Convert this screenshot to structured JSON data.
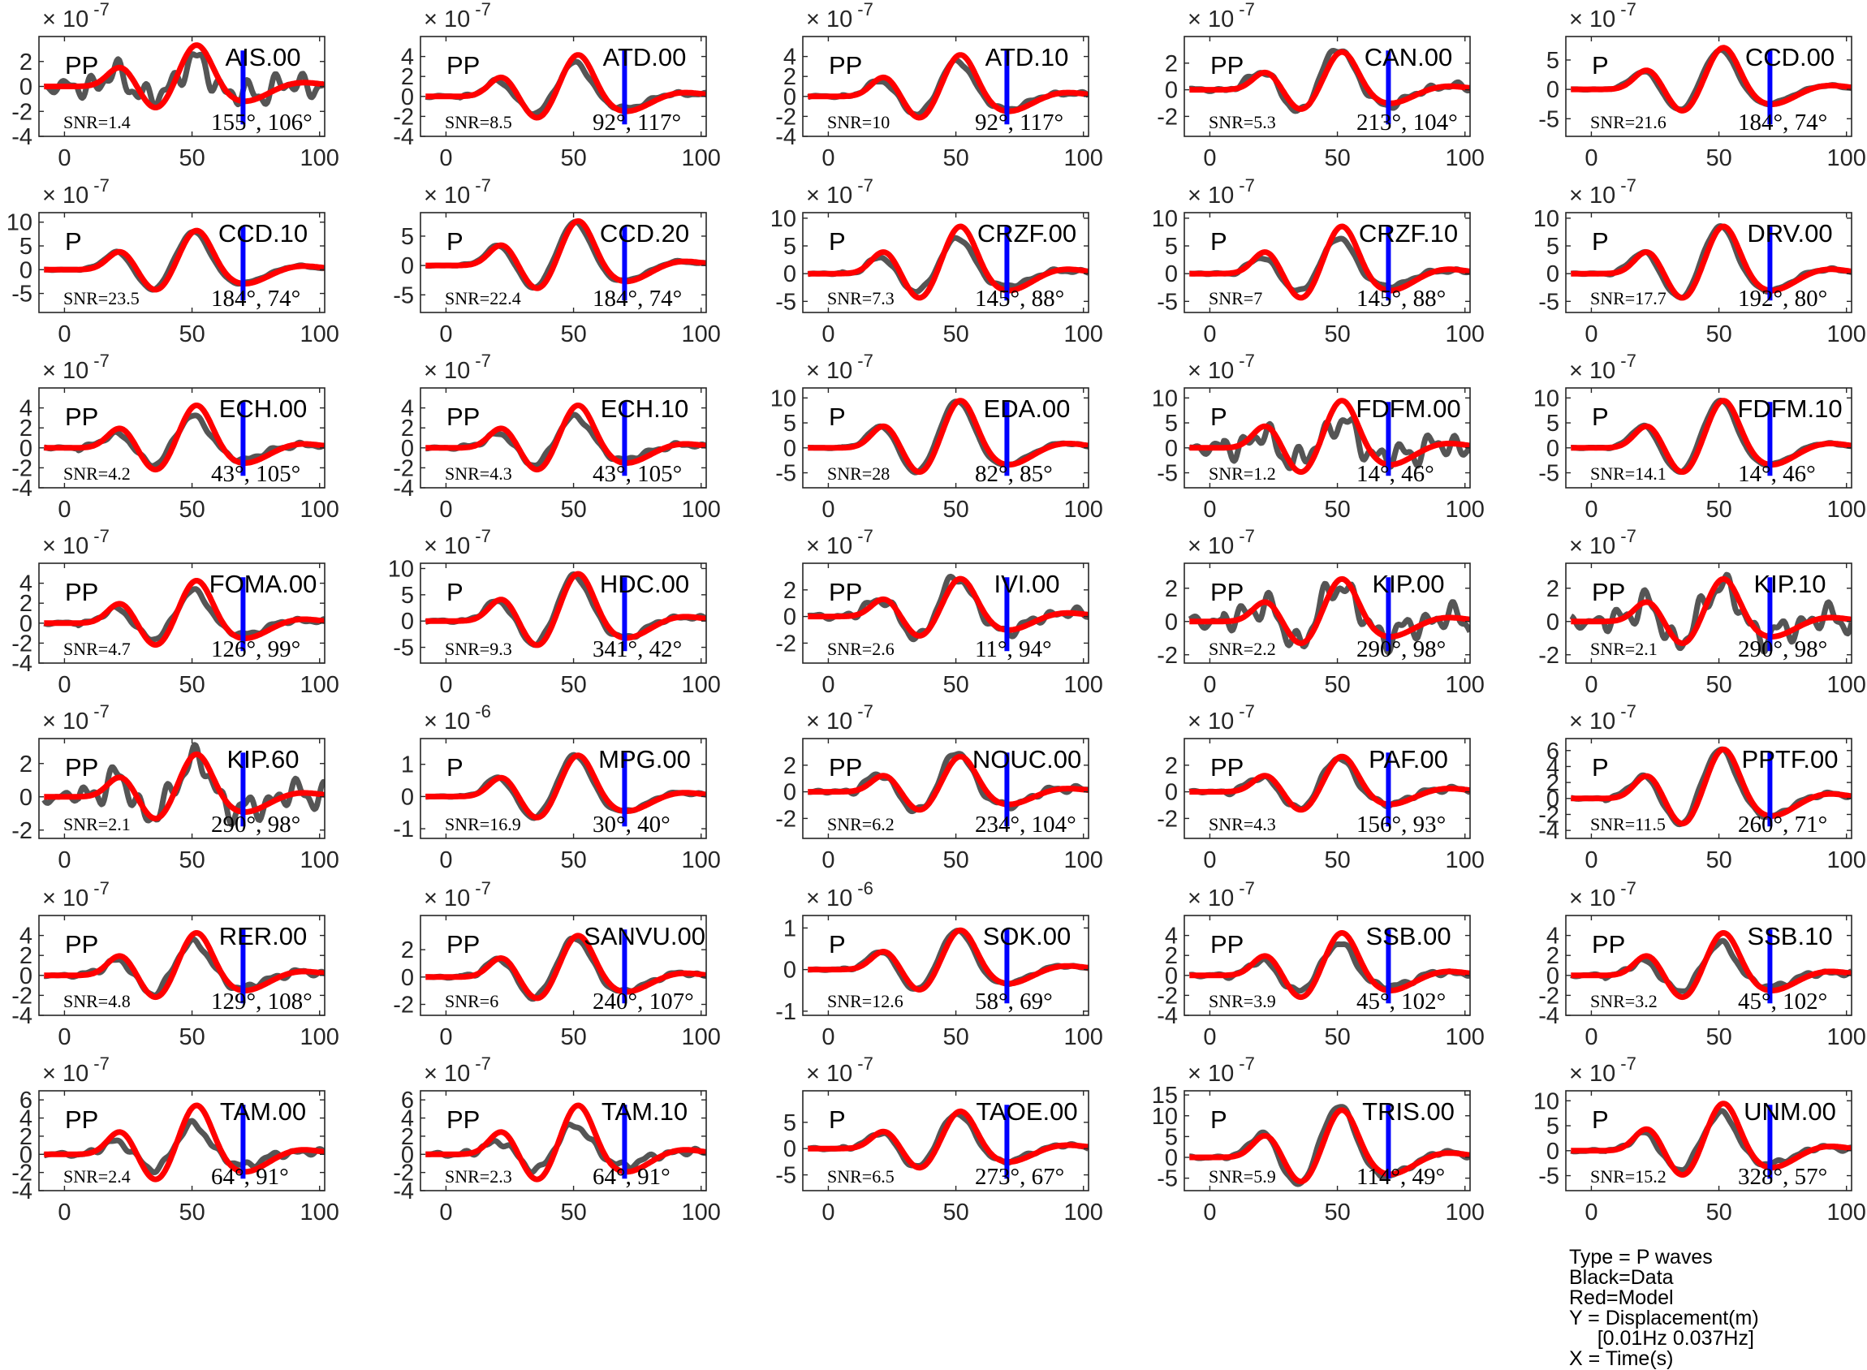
{
  "chart_data": {
    "type": "line",
    "layout": {
      "rows": 7,
      "cols": 5
    },
    "series_colors": {
      "data": "#555555",
      "model": "#ff0000",
      "marker": "#0000ff"
    },
    "x_ticks": [
      "0",
      "50",
      "100"
    ],
    "xlim": [
      -10,
      102
    ],
    "x_marker": 70,
    "panels": [
      {
        "station": "AIS.00",
        "phase": "PP",
        "snr": "SNR=1.4",
        "angles": "155°, 106°",
        "exp": "-7",
        "ylim": [
          -4,
          4
        ],
        "yticks": [
          "-4",
          "-2",
          "0",
          "2"
        ],
        "peak": 3.5,
        "data_amp": 0.6,
        "noise": 0.35
      },
      {
        "station": "ATD.00",
        "phase": "PP",
        "snr": "SNR=8.5",
        "angles": "92°, 117°",
        "exp": "-7",
        "ylim": [
          -4,
          6
        ],
        "yticks": [
          "-4",
          "-2",
          "0",
          "2",
          "4"
        ],
        "peak": 4.4,
        "data_amp": 0.8,
        "noise": 0.05
      },
      {
        "station": "ATD.10",
        "phase": "PP",
        "snr": "SNR=10",
        "angles": "92°, 117°",
        "exp": "-7",
        "ylim": [
          -4,
          6
        ],
        "yticks": [
          "-4",
          "-2",
          "0",
          "2",
          "4"
        ],
        "peak": 4.4,
        "data_amp": 0.85,
        "noise": 0.05
      },
      {
        "station": "CAN.00",
        "phase": "PP",
        "snr": "SNR=5.3",
        "angles": "213°, 104°",
        "exp": "-7",
        "ylim": [
          -3.5,
          4
        ],
        "yticks": [
          "-2",
          "0",
          "2"
        ],
        "peak": 3.0,
        "data_amp": 1.1,
        "noise": 0.1
      },
      {
        "station": "CCD.00",
        "phase": "P",
        "snr": "SNR=21.6",
        "angles": "184°, 74°",
        "exp": "-7",
        "ylim": [
          -8,
          9
        ],
        "yticks": [
          "-5",
          "0",
          "5"
        ],
        "peak": 7.5,
        "data_amp": 0.95,
        "noise": 0.02
      },
      {
        "station": "CCD.10",
        "phase": "P",
        "snr": "SNR=23.5",
        "angles": "184°, 74°",
        "exp": "-7",
        "ylim": [
          -9,
          12
        ],
        "yticks": [
          "-5",
          "0",
          "5",
          "10"
        ],
        "peak": 8.7,
        "data_amp": 0.97,
        "noise": 0.02
      },
      {
        "station": "CCD.20",
        "phase": "P",
        "snr": "SNR=22.4",
        "angles": "184°, 74°",
        "exp": "-7",
        "ylim": [
          -8,
          9
        ],
        "yticks": [
          "-5",
          "0",
          "5"
        ],
        "peak": 8.0,
        "data_amp": 0.97,
        "noise": 0.02
      },
      {
        "station": "CRZF.00",
        "phase": "P",
        "snr": "SNR=7.3",
        "angles": "145°, 88°",
        "exp": "-7",
        "ylim": [
          -7,
          11
        ],
        "yticks": [
          "-5",
          "0",
          "5",
          "10"
        ],
        "peak": 9.0,
        "data_amp": 0.75,
        "noise": 0.04
      },
      {
        "station": "CRZF.10",
        "phase": "P",
        "snr": "SNR=7",
        "angles": "145°, 88°",
        "exp": "-7",
        "ylim": [
          -7,
          11
        ],
        "yticks": [
          "-5",
          "0",
          "5",
          "10"
        ],
        "peak": 9.0,
        "data_amp": 0.75,
        "noise": 0.04
      },
      {
        "station": "DRV.00",
        "phase": "P",
        "snr": "SNR=17.7",
        "angles": "192°, 80°",
        "exp": "-7",
        "ylim": [
          -7,
          11
        ],
        "yticks": [
          "-5",
          "0",
          "5",
          "10"
        ],
        "peak": 9.0,
        "data_amp": 1.0,
        "noise": 0.03
      },
      {
        "station": "ECH.00",
        "phase": "PP",
        "snr": "SNR=4.2",
        "angles": "43°, 105°",
        "exp": "-7",
        "ylim": [
          -4,
          6
        ],
        "yticks": [
          "-4",
          "-2",
          "0",
          "2",
          "4"
        ],
        "peak": 4.5,
        "data_amp": 0.75,
        "noise": 0.06
      },
      {
        "station": "ECH.10",
        "phase": "PP",
        "snr": "SNR=4.3",
        "angles": "43°, 105°",
        "exp": "-7",
        "ylim": [
          -4,
          6
        ],
        "yticks": [
          "-4",
          "-2",
          "0",
          "2",
          "4"
        ],
        "peak": 4.5,
        "data_amp": 0.75,
        "noise": 0.06
      },
      {
        "station": "EDA.00",
        "phase": "P",
        "snr": "SNR=28",
        "angles": "82°, 85°",
        "exp": "-7",
        "ylim": [
          -8,
          12
        ],
        "yticks": [
          "-5",
          "0",
          "5",
          "10"
        ],
        "peak": 10.0,
        "data_amp": 1.0,
        "noise": 0.02
      },
      {
        "station": "FDFM.00",
        "phase": "P",
        "snr": "SNR=1.2",
        "angles": "14°, 46°",
        "exp": "-7",
        "ylim": [
          -8,
          12
        ],
        "yticks": [
          "-5",
          "0",
          "5",
          "10"
        ],
        "peak": 10.0,
        "data_amp": 0.55,
        "noise": 0.3
      },
      {
        "station": "FDFM.10",
        "phase": "P",
        "snr": "SNR=14.1",
        "angles": "14°, 46°",
        "exp": "-7",
        "ylim": [
          -8,
          12
        ],
        "yticks": [
          "-5",
          "0",
          "5",
          "10"
        ],
        "peak": 10.0,
        "data_amp": 1.0,
        "noise": 0.02
      },
      {
        "station": "FOMA.00",
        "phase": "PP",
        "snr": "SNR=4.7",
        "angles": "126°, 99°",
        "exp": "-7",
        "ylim": [
          -4,
          6
        ],
        "yticks": [
          "-4",
          "-2",
          "0",
          "2",
          "4"
        ],
        "peak": 4.5,
        "data_amp": 0.75,
        "noise": 0.06
      },
      {
        "station": "HDC.00",
        "phase": "P",
        "snr": "SNR=9.3",
        "angles": "341°, 42°",
        "exp": "-7",
        "ylim": [
          -8,
          11
        ],
        "yticks": [
          "-5",
          "0",
          "5",
          "10"
        ],
        "peak": 9.5,
        "data_amp": 0.95,
        "noise": 0.05
      },
      {
        "station": "IVI.00",
        "phase": "PP",
        "snr": "SNR=2.6",
        "angles": "11°, 94°",
        "exp": "-7",
        "ylim": [
          -3.5,
          4
        ],
        "yticks": [
          "-2",
          "0",
          "2"
        ],
        "peak": 3.0,
        "data_amp": 1.05,
        "noise": 0.15
      },
      {
        "station": "KIP.00",
        "phase": "PP",
        "snr": "SNR=2.2",
        "angles": "290°, 98°",
        "exp": "-7",
        "ylim": [
          -2.5,
          3.5
        ],
        "yticks": [
          "-2",
          "0",
          "2"
        ],
        "peak": 2.7,
        "data_amp": 0.9,
        "noise": 0.35
      },
      {
        "station": "KIP.10",
        "phase": "PP",
        "snr": "SNR=2.1",
        "angles": "290°, 98°",
        "exp": "-7",
        "ylim": [
          -2.5,
          3.5
        ],
        "yticks": [
          "-2",
          "0",
          "2"
        ],
        "peak": 2.7,
        "data_amp": 0.9,
        "noise": 0.35
      },
      {
        "station": "KIP.60",
        "phase": "PP",
        "snr": "SNR=2.1",
        "angles": "290°, 98°",
        "exp": "-7",
        "ylim": [
          -2.5,
          3.5
        ],
        "yticks": [
          "-2",
          "0",
          "2"
        ],
        "peak": 2.7,
        "data_amp": 0.9,
        "noise": 0.35
      },
      {
        "station": "MPG.00",
        "phase": "P",
        "snr": "SNR=16.9",
        "angles": "30°, 40°",
        "exp": "-6",
        "ylim": [
          -1.3,
          1.8
        ],
        "yticks": [
          "-1",
          "0",
          "1"
        ],
        "peak": 1.35,
        "data_amp": 1.0,
        "noise": 0.03
      },
      {
        "station": "NOUC.00",
        "phase": "PP",
        "snr": "SNR=6.2",
        "angles": "234°, 104°",
        "exp": "-7",
        "ylim": [
          -3.5,
          4
        ],
        "yticks": [
          "-2",
          "0",
          "2"
        ],
        "peak": 2.8,
        "data_amp": 1.1,
        "noise": 0.1
      },
      {
        "station": "PAF.00",
        "phase": "PP",
        "snr": "SNR=4.3",
        "angles": "156°, 93°",
        "exp": "-7",
        "ylim": [
          -3.5,
          4
        ],
        "yticks": [
          "-2",
          "0",
          "2"
        ],
        "peak": 2.8,
        "data_amp": 0.95,
        "noise": 0.08
      },
      {
        "station": "PPTF.00",
        "phase": "P",
        "snr": "SNR=11.5",
        "angles": "260°, 71°",
        "exp": "-7",
        "ylim": [
          -5,
          7.5
        ],
        "yticks": [
          "-4",
          "-2",
          "0",
          "2",
          "4",
          "6"
        ],
        "peak": 6.5,
        "data_amp": 1.0,
        "noise": 0.04
      },
      {
        "station": "RER.00",
        "phase": "PP",
        "snr": "SNR=4.8",
        "angles": "129°, 108°",
        "exp": "-7",
        "ylim": [
          -4,
          6
        ],
        "yticks": [
          "-4",
          "-2",
          "0",
          "2",
          "4"
        ],
        "peak": 4.5,
        "data_amp": 0.8,
        "noise": 0.08
      },
      {
        "station": "SANVU.00",
        "phase": "PP",
        "snr": "SNR=6",
        "angles": "240°, 107°",
        "exp": "-7",
        "ylim": [
          -2.8,
          4.5
        ],
        "yticks": [
          "-2",
          "0",
          "2"
        ],
        "peak": 3.2,
        "data_amp": 0.95,
        "noise": 0.05
      },
      {
        "station": "SOK.00",
        "phase": "P",
        "snr": "SNR=12.6",
        "angles": "58°, 69°",
        "exp": "-6",
        "ylim": [
          -1.1,
          1.3
        ],
        "yticks": [
          "-1",
          "0",
          "1"
        ],
        "peak": 1.0,
        "data_amp": 1.0,
        "noise": 0.03
      },
      {
        "station": "SSB.00",
        "phase": "PP",
        "snr": "SNR=3.9",
        "angles": "45°, 102°",
        "exp": "-7",
        "ylim": [
          -4,
          6
        ],
        "yticks": [
          "-4",
          "-2",
          "0",
          "2",
          "4"
        ],
        "peak": 4.5,
        "data_amp": 0.75,
        "noise": 0.07
      },
      {
        "station": "SSB.10",
        "phase": "PP",
        "snr": "SNR=3.2",
        "angles": "45°, 102°",
        "exp": "-7",
        "ylim": [
          -4,
          6
        ],
        "yticks": [
          "-4",
          "-2",
          "0",
          "2",
          "4"
        ],
        "peak": 4.5,
        "data_amp": 0.75,
        "noise": 0.07
      },
      {
        "station": "TAM.00",
        "phase": "PP",
        "snr": "SNR=2.4",
        "angles": "64°, 91°",
        "exp": "-7",
        "ylim": [
          -4,
          7
        ],
        "yticks": [
          "-4",
          "-2",
          "0",
          "2",
          "4",
          "6"
        ],
        "peak": 5.7,
        "data_amp": 0.6,
        "noise": 0.08
      },
      {
        "station": "TAM.10",
        "phase": "PP",
        "snr": "SNR=2.3",
        "angles": "64°, 91°",
        "exp": "-7",
        "ylim": [
          -4,
          7
        ],
        "yticks": [
          "-4",
          "-2",
          "0",
          "2",
          "4",
          "6"
        ],
        "peak": 5.7,
        "data_amp": 0.6,
        "noise": 0.08
      },
      {
        "station": "TAOE.00",
        "phase": "P",
        "snr": "SNR=6.5",
        "angles": "273°, 67°",
        "exp": "-7",
        "ylim": [
          -8,
          11
        ],
        "yticks": [
          "-5",
          "0",
          "5"
        ],
        "peak": 7.5,
        "data_amp": 0.95,
        "noise": 0.05
      },
      {
        "station": "TRIS.00",
        "phase": "P",
        "snr": "SNR=5.9",
        "angles": "114°, 49°",
        "exp": "-7",
        "ylim": [
          -8,
          16
        ],
        "yticks": [
          "-5",
          "0",
          "5",
          "10",
          "15"
        ],
        "peak": 12.0,
        "data_amp": 1.1,
        "noise": 0.05
      },
      {
        "station": "UNM.00",
        "phase": "P",
        "snr": "SNR=15.2",
        "angles": "328°, 57°",
        "exp": "-7",
        "ylim": [
          -8,
          12
        ],
        "yticks": [
          "-5",
          "0",
          "5",
          "10"
        ],
        "peak": 10.0,
        "data_amp": 0.8,
        "noise": 0.05
      }
    ],
    "annotations": [
      "Type = P waves",
      "Black=Data",
      "Red=Model",
      "Y = Displacement(m)",
      "     [0.01Hz 0.037Hz]",
      "X = Time(s)"
    ]
  }
}
